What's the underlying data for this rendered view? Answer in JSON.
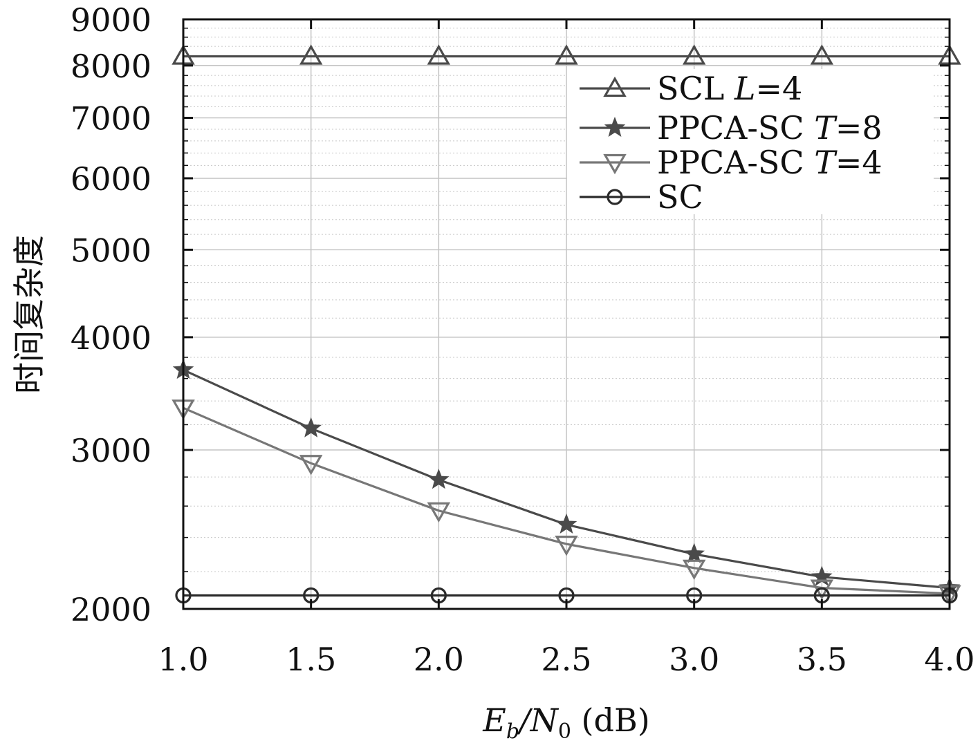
{
  "chart_data": {
    "type": "line",
    "xlabel": "E_b/N_0 (dB)",
    "xlabel_parts": {
      "main": "E",
      "sub": "b",
      "slash": "/N",
      "sub2": "0",
      "unit": " (dB)"
    },
    "ylabel": "时间复杂度",
    "x": [
      1.0,
      1.5,
      2.0,
      2.5,
      3.0,
      3.5,
      4.0
    ],
    "x_tick_labels": [
      "1.0",
      "1.5",
      "2.0",
      "2.5",
      "3.0",
      "3.5",
      "4.0"
    ],
    "xlim": [
      1.0,
      4.0
    ],
    "ylim": [
      2000,
      9000
    ],
    "y_scale": "log",
    "y_ticks": [
      2000,
      3000,
      4000,
      5000,
      6000,
      7000,
      8000,
      9000
    ],
    "y_tick_labels": [
      "2000",
      "3000",
      "4000",
      "5000",
      "6000",
      "7000",
      "8000",
      "9000"
    ],
    "grid": true,
    "legend_position": "top-right",
    "series": [
      {
        "name": "SCL L=4",
        "name_parts": [
          "SCL ",
          "L",
          "=4"
        ],
        "marker": "triangle-up",
        "color": "#4a4a4a",
        "values": [
          8190,
          8190,
          8190,
          8190,
          8190,
          8190,
          8190
        ]
      },
      {
        "name": "PPCA-SC T=8",
        "name_parts": [
          "PPCA-SC ",
          "T",
          "=8"
        ],
        "marker": "star",
        "color": "#4a4a4a",
        "values": [
          3680,
          3170,
          2780,
          2480,
          2300,
          2170,
          2110
        ]
      },
      {
        "name": "PPCA-SC T=4",
        "name_parts": [
          "PPCA-SC ",
          "T",
          "=4"
        ],
        "marker": "triangle-down",
        "color": "#777777",
        "values": [
          3340,
          2900,
          2570,
          2360,
          2220,
          2110,
          2080
        ]
      },
      {
        "name": "SC",
        "name_parts": [
          "SC",
          "",
          ""
        ],
        "marker": "circle",
        "color": "#2a2a2a",
        "values": [
          2070,
          2070,
          2070,
          2070,
          2070,
          2070,
          2070
        ]
      }
    ]
  }
}
